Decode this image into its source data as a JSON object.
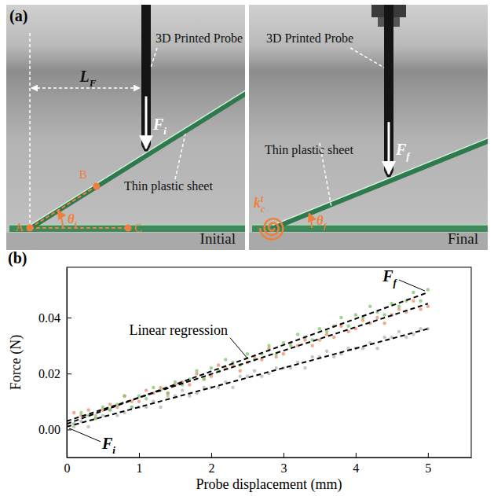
{
  "figure_a": {
    "panel_label": "(a)",
    "length_label": {
      "text": "L",
      "subscript": "F"
    },
    "panels": [
      {
        "caption": "Initial",
        "probe_label": "3D Printed Probe",
        "sheet_label": "Thin plastic sheet",
        "force": {
          "text": "F",
          "subscript": "i"
        },
        "angle": {
          "text": "θ",
          "subscript": "i"
        },
        "points": [
          "A",
          "B",
          "C"
        ]
      },
      {
        "caption": "Final",
        "probe_label": "3D Printed Probe",
        "sheet_label": "Thin plastic sheet",
        "force": {
          "text": "F",
          "subscript": "f"
        },
        "angle": {
          "text": "θ",
          "subscript": "f"
        },
        "spring": {
          "text": "k",
          "superscript": "t",
          "subscript": "c"
        }
      }
    ]
  },
  "chart_data": {
    "type": "scatter",
    "panel_label": "(b)",
    "x_label": "Probe displacement (mm)",
    "y_label": "Force (N)",
    "x": [
      0,
      0.1,
      0.2,
      0.3,
      0.4,
      0.5,
      0.6,
      0.7,
      0.8,
      0.9,
      1,
      1.1,
      1.2,
      1.3,
      1.4,
      1.5,
      1.6,
      1.7,
      1.8,
      1.9,
      2,
      2.1,
      2.2,
      2.3,
      2.4,
      2.5,
      2.6,
      2.7,
      2.8,
      2.9,
      3,
      3.1,
      3.2,
      3.3,
      3.4,
      3.5,
      3.6,
      3.7,
      3.8,
      3.9,
      4,
      4.1,
      4.2,
      4.3,
      4.4,
      4.5,
      4.6,
      4.7,
      4.8,
      4.9,
      5
    ],
    "series": [
      {
        "color": "#b3b3b3",
        "marker": "circle",
        "values": [
          0.001,
          0.001,
          0.003,
          0.001,
          0.005,
          0.005,
          0.007,
          0.005,
          0.006,
          0.008,
          0.008,
          0.008,
          0.01,
          0.008,
          0.012,
          0.012,
          0.014,
          0.012,
          0.013,
          0.015,
          0.015,
          0.015,
          0.017,
          0.015,
          0.019,
          0.019,
          0.021,
          0.019,
          0.02,
          0.022,
          0.022,
          0.022,
          0.024,
          0.022,
          0.026,
          0.026,
          0.028,
          0.026,
          0.027,
          0.029,
          0.029,
          0.029,
          0.031,
          0.029,
          0.033,
          0.033,
          0.035,
          0.033,
          0.034,
          0.036,
          0.036
        ]
      },
      {
        "color": "#f28b61",
        "marker": "circle",
        "values": [
          0.002,
          0.006,
          0.005,
          0.007,
          0.004,
          0.007,
          0.009,
          0.008,
          0.012,
          0.01,
          0.01,
          0.014,
          0.013,
          0.015,
          0.013,
          0.016,
          0.017,
          0.016,
          0.02,
          0.018,
          0.019,
          0.023,
          0.022,
          0.023,
          0.021,
          0.024,
          0.026,
          0.025,
          0.029,
          0.026,
          0.027,
          0.031,
          0.03,
          0.032,
          0.03,
          0.032,
          0.034,
          0.033,
          0.037,
          0.035,
          0.036,
          0.039,
          0.038,
          0.04,
          0.038,
          0.041,
          0.043,
          0.042,
          0.046,
          0.043,
          0.044
        ]
      },
      {
        "color": "#7cc76b",
        "marker": "circle",
        "values": [
          0.003,
          0.002,
          0.006,
          0.005,
          0.004,
          0.008,
          0.007,
          0.009,
          0.012,
          0.008,
          0.012,
          0.011,
          0.015,
          0.014,
          0.013,
          0.017,
          0.016,
          0.018,
          0.021,
          0.018,
          0.022,
          0.021,
          0.025,
          0.024,
          0.023,
          0.027,
          0.025,
          0.027,
          0.03,
          0.027,
          0.031,
          0.03,
          0.034,
          0.033,
          0.032,
          0.036,
          0.035,
          0.037,
          0.04,
          0.037,
          0.041,
          0.04,
          0.044,
          0.042,
          0.041,
          0.045,
          0.044,
          0.046,
          0.049,
          0.046,
          0.05
        ]
      },
      {
        "type": "line",
        "line_style": "dashed",
        "color": "#000000",
        "x": [
          0,
          5
        ],
        "values": [
          0.001,
          0.036
        ]
      },
      {
        "type": "line",
        "line_style": "dashed",
        "color": "#000000",
        "x": [
          0,
          5
        ],
        "values": [
          0.003,
          0.045
        ]
      },
      {
        "type": "line",
        "line_style": "dashed",
        "color": "#000000",
        "x": [
          0,
          5
        ],
        "values": [
          0.002,
          0.049
        ]
      }
    ],
    "xlim": [
      0,
      5.6
    ],
    "xticks": [
      0,
      1,
      2,
      3,
      4,
      5
    ],
    "ylim": [
      -0.01,
      0.058
    ],
    "yticks": [
      {
        "value": 0,
        "label": "0.00"
      },
      {
        "value": 0.02,
        "label": "0.02"
      },
      {
        "value": 0.04,
        "label": "0.04"
      }
    ],
    "grid": false,
    "annotations": [
      {
        "text": "Linear regression"
      },
      {
        "text": "F",
        "subscript": "f"
      },
      {
        "text": "F",
        "subscript": "i"
      }
    ]
  }
}
